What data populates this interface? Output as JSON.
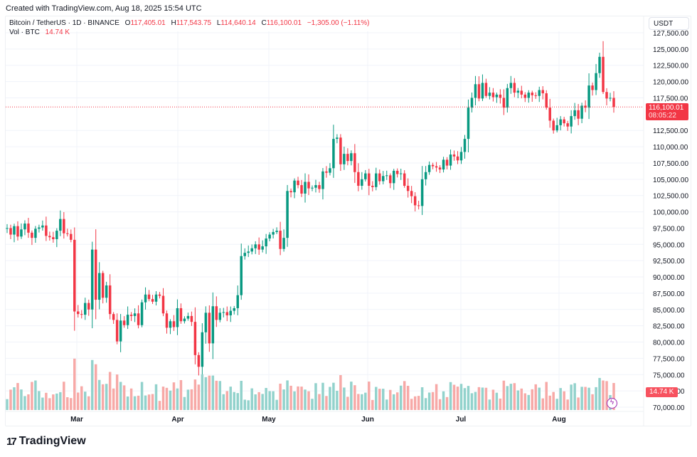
{
  "header": {
    "created_text": "Created with TradingView.com, Aug 18, 2025 15:54 UTC"
  },
  "legend": {
    "symbol": "Bitcoin / TetherUS · 1D · BINANCE",
    "o_label": "O",
    "o_value": "117,405.01",
    "h_label": "H",
    "h_value": "117,543.75",
    "l_label": "L",
    "l_value": "114,640.14",
    "c_label": "C",
    "c_value": "116,100.01",
    "change": "−1,305.00 (−1.11%)",
    "vol_label": "Vol · BTC",
    "vol_value": "14.74 K"
  },
  "price_scale": {
    "currency": "USDT",
    "ticks": [
      "127,500.00",
      "125,000.00",
      "122,500.00",
      "120,000.00",
      "117,500.00",
      "112,500.00",
      "110,000.00",
      "107,500.00",
      "105,000.00",
      "102,500.00",
      "100,000.00",
      "97,500.00",
      "95,000.00",
      "92,500.00",
      "90,000.00",
      "87,500.00",
      "85,000.00",
      "82,500.00",
      "80,000.00",
      "77,500.00",
      "75,000.00",
      "72,500.00",
      "70,000.00"
    ],
    "last_price": "116,100.01",
    "countdown": "08:05:22",
    "vol_badge": "14.74 K"
  },
  "time_scale": {
    "labels": [
      "Mar",
      "Apr",
      "May",
      "Jun",
      "Jul",
      "Aug"
    ]
  },
  "colors": {
    "up": "#089981",
    "down": "#f23645",
    "vol_up": "#92d2cc",
    "vol_down": "#f7a9a7",
    "grid": "#f0f3fa",
    "indicator": "#9c27b0"
  },
  "branding": {
    "logo_text": "TradingView",
    "logo_mark": "17"
  },
  "chart_data": {
    "type": "candlestick",
    "title": "Bitcoin / TetherUS · 1D · BINANCE",
    "xlabel": "",
    "ylabel": "USDT",
    "ylim": [
      70000,
      127500
    ],
    "x_tick_labels": [
      "Mar",
      "Apr",
      "May",
      "Jun",
      "Jul",
      "Aug"
    ],
    "y_tick_step": 2500,
    "grid": true,
    "series_closes_approx": [
      97500,
      96500,
      97800,
      96200,
      97300,
      98200,
      96800,
      96000,
      97400,
      97600,
      97900,
      96300,
      96100,
      95800,
      97100,
      98900,
      96700,
      96600,
      95700,
      84700,
      84300,
      84200,
      86000,
      85000,
      94200,
      86500,
      90600,
      86800,
      88700,
      84300,
      83400,
      80100,
      83300,
      82600,
      84200,
      84000,
      84400,
      82600,
      86100,
      87300,
      86600,
      86200,
      87300,
      87100,
      84400,
      82200,
      83200,
      82300,
      85200,
      83200,
      83600,
      84000,
      83100,
      78000,
      76200,
      81500,
      84500,
      79800,
      85500,
      83400,
      84500,
      84600,
      84100,
      84800,
      85200,
      87200,
      93200,
      93700,
      93900,
      94400,
      95000,
      94200,
      94700,
      95900,
      96500,
      96900,
      97100,
      94300,
      96000,
      103200,
      103000,
      104800,
      104100,
      102800,
      104600,
      103600,
      103700,
      104100,
      103500,
      106200,
      106000,
      106700,
      111200,
      111400,
      107300,
      108900,
      107800,
      109000,
      106100,
      104000,
      105000,
      105900,
      104000,
      103800,
      105900,
      104700,
      105500,
      105600,
      104400,
      106300,
      105800,
      105900,
      104000,
      103200,
      102400,
      101000,
      100900,
      105000,
      106100,
      107200,
      107000,
      106800,
      106500,
      108000,
      107100,
      108800,
      108500,
      107900,
      109200,
      111200,
      116000,
      117500,
      119600,
      117400,
      119800,
      117800,
      118300,
      117600,
      118000,
      117500,
      116000,
      119000,
      119800,
      118300,
      118600,
      118000,
      117500,
      118300,
      117900,
      117800,
      118700,
      118200,
      116000,
      114000,
      112500,
      113300,
      114200,
      113600,
      113100,
      114700,
      115600,
      114300,
      116300,
      116000,
      119400,
      118700,
      121300,
      123800,
      118400,
      117400,
      117500,
      116100
    ]
  }
}
